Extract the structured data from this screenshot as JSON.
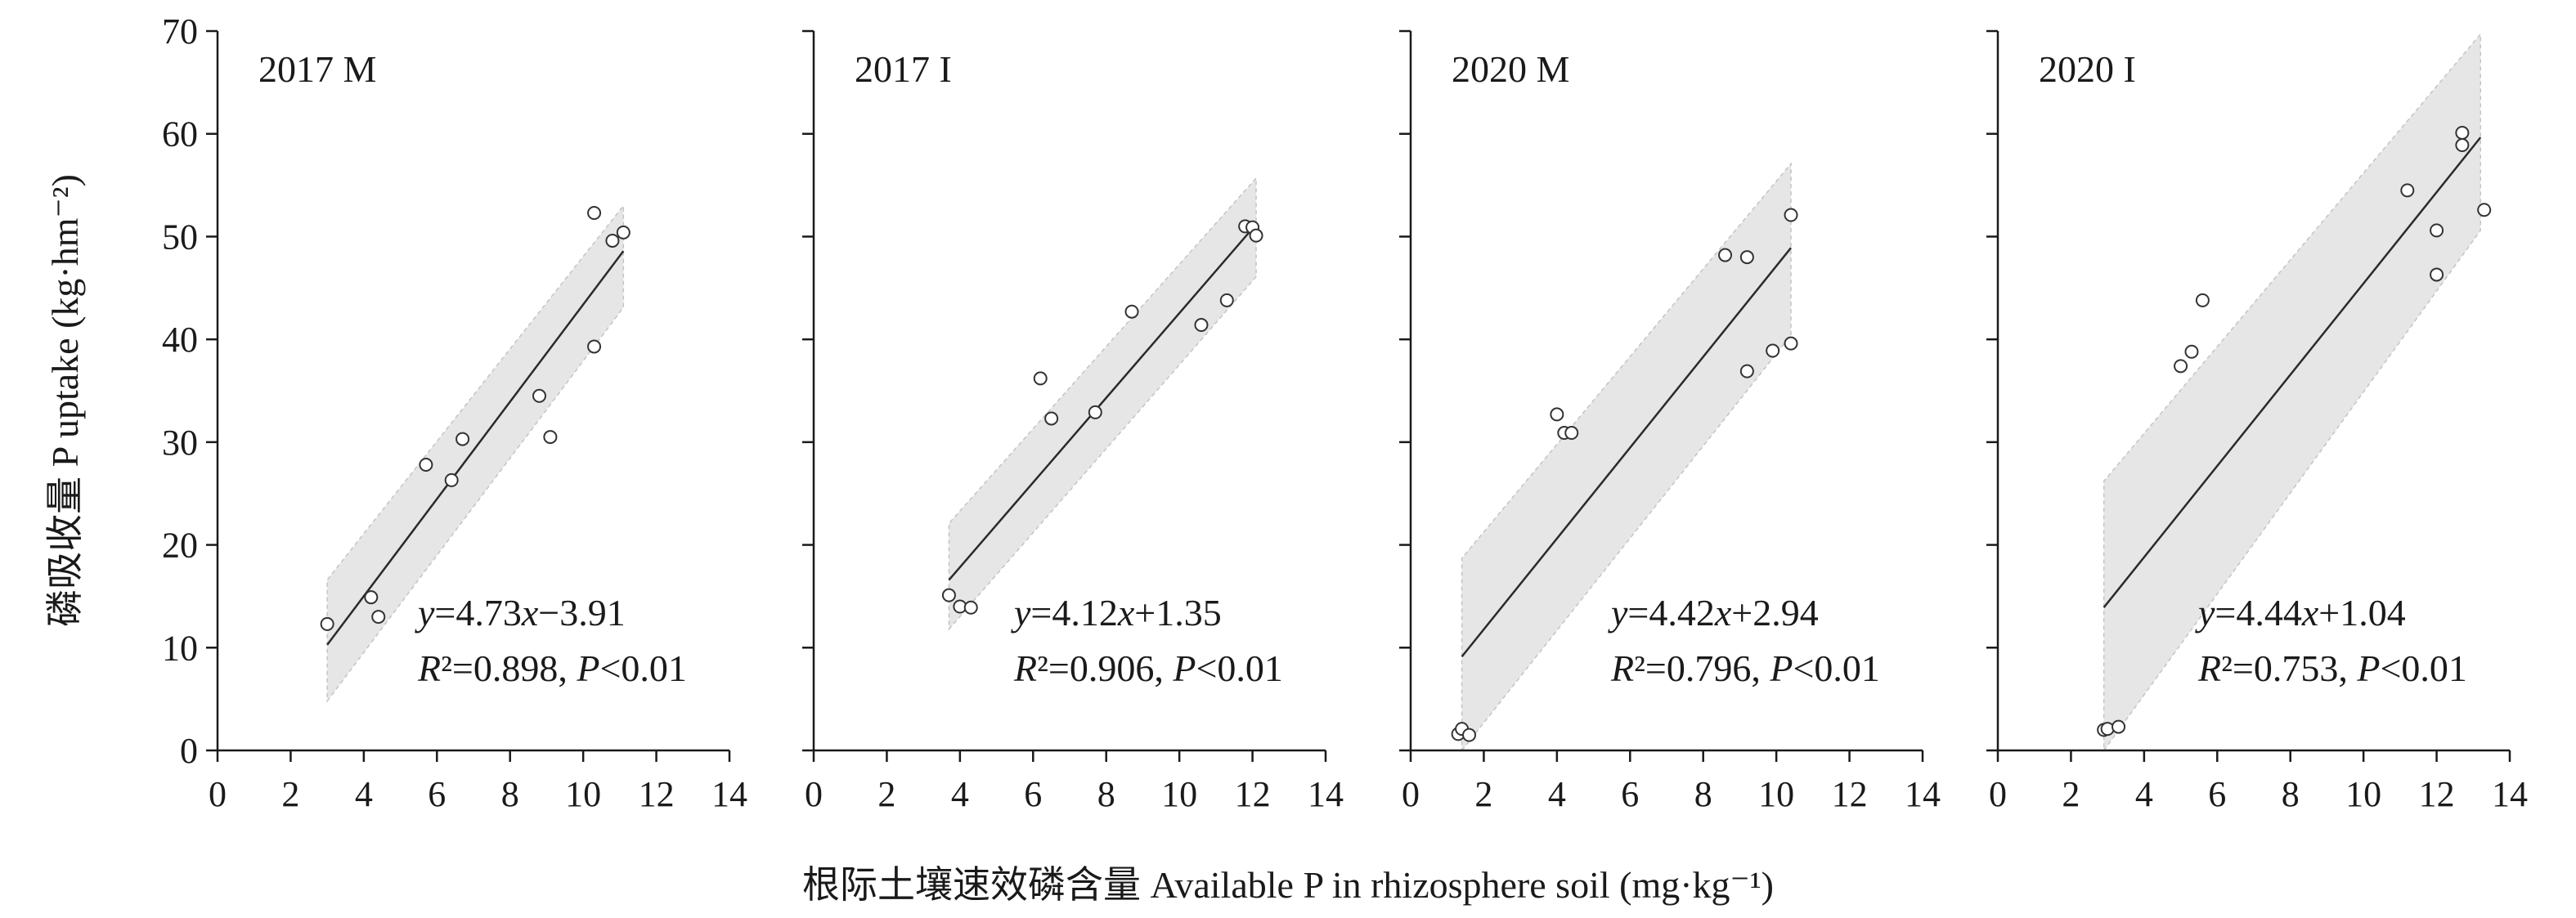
{
  "figure": {
    "ylabel": "磷吸收量 P uptake (kg·hm⁻²)",
    "xlabel": "根际土壤速效磷含量 Available P in rhizosphere soil (mg·kg⁻¹)"
  },
  "chart_data": [
    {
      "type": "scatter",
      "title": "2017 M",
      "xlim": [
        0,
        14
      ],
      "ylim": [
        0,
        70
      ],
      "xticks": [
        0,
        2,
        4,
        6,
        8,
        10,
        12,
        14
      ],
      "yticks": [
        0,
        10,
        20,
        30,
        40,
        50,
        60,
        70
      ],
      "points": [
        [
          3.0,
          12.3
        ],
        [
          4.2,
          14.9
        ],
        [
          4.4,
          13.0
        ],
        [
          5.7,
          27.8
        ],
        [
          6.4,
          26.3
        ],
        [
          6.7,
          30.3
        ],
        [
          8.8,
          34.5
        ],
        [
          9.1,
          30.5
        ],
        [
          10.3,
          39.3
        ],
        [
          10.3,
          52.3
        ],
        [
          10.8,
          49.6
        ],
        [
          11.1,
          50.4
        ]
      ],
      "fit": {
        "slope": 4.73,
        "intercept": -3.91,
        "x_range": [
          3.0,
          11.1
        ]
      },
      "ci_band": [
        [
          3.0,
          4.8,
          16.6
        ],
        [
          11.1,
          43.1,
          53.0
        ]
      ],
      "equation": "y=4.73x−3.91",
      "r2": "R²=0.898, P<0.01"
    },
    {
      "type": "scatter",
      "title": "2017 I",
      "xlim": [
        0,
        14
      ],
      "ylim": [
        0,
        70
      ],
      "xticks": [
        0,
        2,
        4,
        6,
        8,
        10,
        12,
        14
      ],
      "yticks": [
        0,
        10,
        20,
        30,
        40,
        50,
        60,
        70
      ],
      "points": [
        [
          3.7,
          15.1
        ],
        [
          4.0,
          14.0
        ],
        [
          4.3,
          13.9
        ],
        [
          6.2,
          36.2
        ],
        [
          6.5,
          32.3
        ],
        [
          7.7,
          32.9
        ],
        [
          8.7,
          42.7
        ],
        [
          10.6,
          41.4
        ],
        [
          11.3,
          43.8
        ],
        [
          11.8,
          51.0
        ],
        [
          12.0,
          50.9
        ],
        [
          12.1,
          50.1
        ]
      ],
      "fit": {
        "slope": 4.12,
        "intercept": 1.35,
        "x_range": [
          3.7,
          12.1
        ]
      },
      "ci_band": [
        [
          3.7,
          11.8,
          22.1
        ],
        [
          12.1,
          46.1,
          55.7
        ]
      ],
      "equation": "y=4.12x+1.35",
      "r2": "R²=0.906, P<0.01"
    },
    {
      "type": "scatter",
      "title": "2020 M",
      "xlim": [
        0,
        14
      ],
      "ylim": [
        0,
        70
      ],
      "xticks": [
        0,
        2,
        4,
        6,
        8,
        10,
        12,
        14
      ],
      "yticks": [
        0,
        10,
        20,
        30,
        40,
        50,
        60,
        70
      ],
      "points": [
        [
          1.3,
          1.6
        ],
        [
          1.4,
          2.1
        ],
        [
          1.6,
          1.5
        ],
        [
          4.0,
          32.7
        ],
        [
          4.2,
          30.9
        ],
        [
          4.4,
          30.9
        ],
        [
          8.6,
          48.2
        ],
        [
          9.2,
          48.0
        ],
        [
          9.2,
          36.9
        ],
        [
          9.9,
          38.9
        ],
        [
          10.4,
          52.1
        ],
        [
          10.4,
          39.6
        ]
      ],
      "fit": {
        "slope": 4.42,
        "intercept": 2.94,
        "x_range": [
          1.4,
          10.4
        ]
      },
      "ci_band": [
        [
          1.4,
          0.0,
          18.7
        ],
        [
          10.4,
          40.4,
          57.1
        ]
      ],
      "equation": "y=4.42x+2.94",
      "r2": "R²=0.796, P<0.01"
    },
    {
      "type": "scatter",
      "title": "2020 I",
      "xlim": [
        0,
        14
      ],
      "ylim": [
        0,
        70
      ],
      "xticks": [
        0,
        2,
        4,
        6,
        8,
        10,
        12,
        14
      ],
      "yticks": [
        0,
        10,
        20,
        30,
        40,
        50,
        60,
        70
      ],
      "points": [
        [
          2.9,
          2.0
        ],
        [
          3.0,
          2.1
        ],
        [
          3.3,
          2.3
        ],
        [
          5.0,
          37.4
        ],
        [
          5.3,
          38.8
        ],
        [
          5.6,
          43.8
        ],
        [
          11.2,
          54.5
        ],
        [
          12.0,
          50.6
        ],
        [
          12.0,
          46.3
        ],
        [
          12.7,
          58.9
        ],
        [
          12.7,
          60.1
        ],
        [
          13.3,
          52.6
        ]
      ],
      "fit": {
        "slope": 4.44,
        "intercept": 1.04,
        "x_range": [
          2.9,
          13.2
        ]
      },
      "ci_band": [
        [
          2.9,
          0.0,
          26.2
        ],
        [
          13.2,
          50.6,
          69.7
        ]
      ],
      "equation": "y=4.44x+1.04",
      "r2": "R²=0.753, P<0.01"
    }
  ]
}
